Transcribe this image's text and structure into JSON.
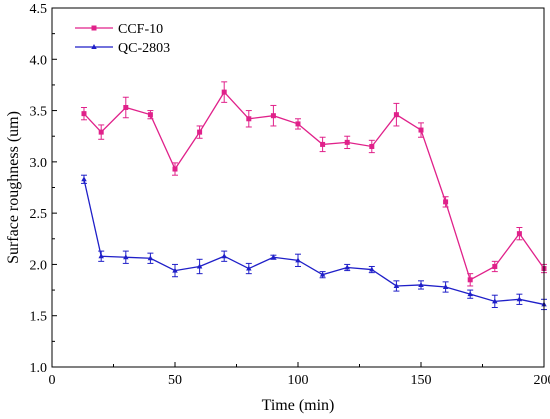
{
  "chart_data": {
    "type": "line",
    "xlabel": "Time (min)",
    "ylabel": "Surface roughness (um)",
    "xlim": [
      0,
      200
    ],
    "ylim": [
      1.0,
      4.5
    ],
    "x_ticks": [
      0,
      50,
      100,
      150,
      200
    ],
    "y_ticks": [
      1.0,
      1.5,
      2.0,
      2.5,
      3.0,
      3.5,
      4.0,
      4.5
    ],
    "x_tick_labels": [
      "0",
      "50",
      "100",
      "150",
      "200"
    ],
    "y_tick_labels": [
      "1.0",
      "1.5",
      "2.0",
      "2.5",
      "3.0",
      "3.5",
      "4.0",
      "4.5"
    ],
    "grid": false,
    "legend": "top-left",
    "series": [
      {
        "name": "CCF-10",
        "color": "#e0218a",
        "marker": "square",
        "x": [
          13,
          20,
          30,
          40,
          50,
          60,
          70,
          80,
          90,
          100,
          110,
          120,
          130,
          140,
          150,
          160,
          170,
          180,
          190,
          200
        ],
        "y": [
          3.47,
          3.29,
          3.53,
          3.46,
          2.93,
          3.29,
          3.68,
          3.42,
          3.45,
          3.37,
          3.17,
          3.19,
          3.15,
          3.46,
          3.31,
          2.61,
          1.85,
          1.98,
          2.3,
          1.96
        ],
        "err": [
          0.06,
          0.07,
          0.1,
          0.04,
          0.06,
          0.06,
          0.1,
          0.08,
          0.1,
          0.05,
          0.07,
          0.06,
          0.06,
          0.11,
          0.07,
          0.05,
          0.06,
          0.05,
          0.06,
          0.04
        ]
      },
      {
        "name": "QC-2803",
        "color": "#1f1fc8",
        "marker": "triangle",
        "x": [
          13,
          20,
          30,
          40,
          50,
          60,
          70,
          80,
          90,
          100,
          110,
          120,
          130,
          140,
          150,
          160,
          170,
          180,
          190,
          200
        ],
        "y": [
          2.83,
          2.08,
          2.07,
          2.06,
          1.94,
          1.98,
          2.08,
          1.96,
          2.07,
          2.04,
          1.9,
          1.97,
          1.95,
          1.79,
          1.8,
          1.78,
          1.71,
          1.64,
          1.66,
          1.61
        ],
        "err": [
          0.04,
          0.05,
          0.06,
          0.05,
          0.06,
          0.07,
          0.05,
          0.05,
          0.02,
          0.06,
          0.03,
          0.03,
          0.03,
          0.05,
          0.04,
          0.05,
          0.04,
          0.06,
          0.05,
          0.05
        ]
      }
    ]
  }
}
